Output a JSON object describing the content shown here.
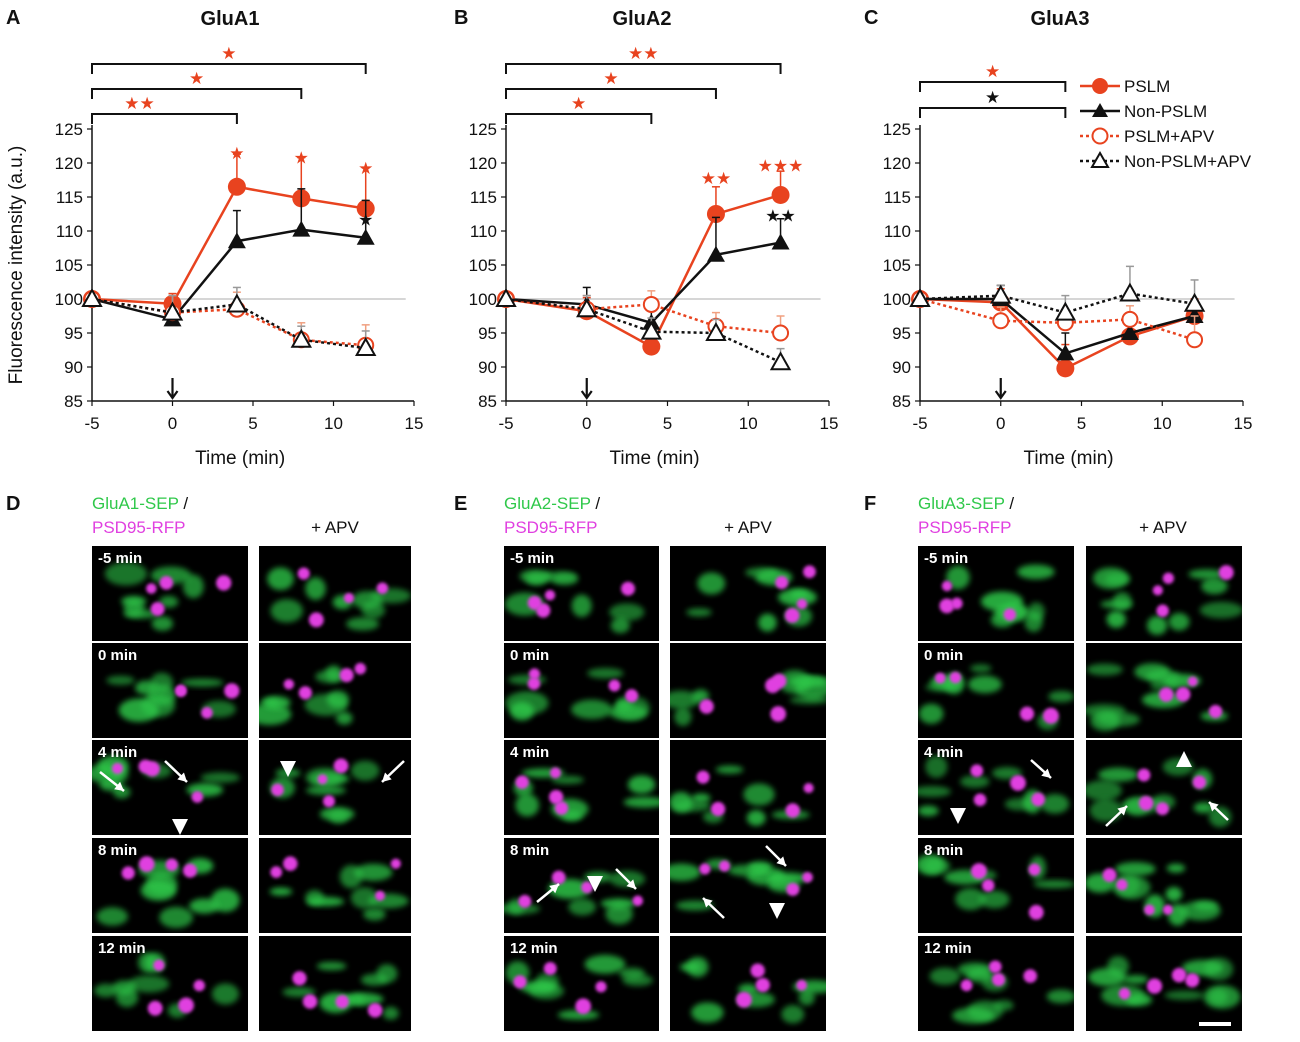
{
  "colors": {
    "pslm": "#e8431f",
    "nonpslm": "#111111",
    "pslm_apv": "#e8431f",
    "nonpslm_apv": "#111111",
    "green": "#2fc84a",
    "magenta": "#e040e0",
    "grid": "#c8c8c8"
  },
  "panels": {
    "A": "A",
    "B": "B",
    "C": "C",
    "D": "D",
    "E": "E",
    "F": "F"
  },
  "legend": [
    "PSLM",
    "Non-PSLM",
    "PSLM+APV",
    "Non-PSLM+APV"
  ],
  "axis": {
    "ylabel": "Fluorescence intensity (a.u.)",
    "xlabel": "Time (min)"
  },
  "chart_data": [
    {
      "type": "line",
      "title": "GluA1",
      "xlabel": "Time (min)",
      "ylabel": "Fluorescence intensity (a.u.)",
      "xlim": [
        -5,
        15
      ],
      "ylim": [
        85,
        125
      ],
      "xticks": [
        -5,
        0,
        5,
        10,
        15
      ],
      "yticks": [
        85,
        90,
        95,
        100,
        105,
        110,
        115,
        120,
        125
      ],
      "x": [
        -5,
        0,
        4,
        8,
        12
      ],
      "stim_arrow_x": 0,
      "series": [
        {
          "name": "PSLM",
          "values": [
            100,
            99.3,
            116.5,
            114.8,
            113.3
          ],
          "err": [
            0,
            1.5,
            4.8,
            6.0,
            6.0
          ],
          "marker": "circle",
          "filled": true,
          "dashed": false
        },
        {
          "name": "Non-PSLM",
          "values": [
            100,
            97,
            108.5,
            110.2,
            109
          ],
          "err": [
            0,
            2.0,
            4.5,
            6.0,
            5.5
          ],
          "marker": "triangle",
          "filled": true,
          "dashed": false
        },
        {
          "name": "PSLM+APV",
          "values": [
            100,
            98,
            98.5,
            94,
            93.2
          ],
          "err": [
            0,
            2.5,
            2.5,
            2.5,
            3.0
          ],
          "marker": "circle",
          "filled": false,
          "dashed": true
        },
        {
          "name": "Non-PSLM+APV",
          "values": [
            100,
            98,
            99.2,
            94,
            92.8
          ],
          "err": [
            0,
            2.5,
            2.5,
            2.0,
            2.5
          ],
          "marker": "triangle",
          "filled": false,
          "dashed": true
        }
      ],
      "brackets": [
        {
          "x1": -5,
          "x2": 4,
          "stars": "★★",
          "color": "#e8431f"
        },
        {
          "x1": -5,
          "x2": 8,
          "stars": "★",
          "color": "#e8431f"
        },
        {
          "x1": -5,
          "x2": 12,
          "stars": "★",
          "color": "#e8431f"
        }
      ],
      "point_stars": [
        {
          "x": 4,
          "y": 121.5,
          "stars": "★",
          "color": "#e8431f"
        },
        {
          "x": 8,
          "y": 120.8,
          "stars": "★",
          "color": "#e8431f"
        },
        {
          "x": 12,
          "y": 119.3,
          "stars": "★",
          "color": "#e8431f"
        },
        {
          "x": 12,
          "y": 111.7,
          "stars": "★",
          "color": "#111111"
        }
      ]
    },
    {
      "type": "line",
      "title": "GluA2",
      "xlabel": "Time (min)",
      "ylabel": "",
      "xlim": [
        -5,
        15
      ],
      "ylim": [
        85,
        125
      ],
      "xticks": [
        -5,
        0,
        5,
        10,
        15
      ],
      "yticks": [
        85,
        90,
        95,
        100,
        105,
        110,
        115,
        120,
        125
      ],
      "x": [
        -5,
        0,
        4,
        8,
        12
      ],
      "stim_arrow_x": 0,
      "series": [
        {
          "name": "PSLM",
          "values": [
            100,
            98.2,
            93,
            112.5,
            115.3
          ],
          "err": [
            0,
            2.0,
            3.5,
            4.0,
            3.5
          ],
          "marker": "circle",
          "filled": true,
          "dashed": false
        },
        {
          "name": "Non-PSLM",
          "values": [
            100,
            99.2,
            96.5,
            106.5,
            108.3
          ],
          "err": [
            0,
            2.5,
            3.0,
            5.5,
            3.5
          ],
          "marker": "triangle",
          "filled": true,
          "dashed": false
        },
        {
          "name": "PSLM+APV",
          "values": [
            100,
            98.5,
            99.2,
            96,
            95
          ],
          "err": [
            0,
            2.0,
            2.0,
            2.0,
            2.5
          ],
          "marker": "circle",
          "filled": false,
          "dashed": true
        },
        {
          "name": "Non-PSLM+APV",
          "values": [
            100,
            98.5,
            95.2,
            95,
            90.7
          ],
          "err": [
            0,
            2.0,
            2.0,
            2.0,
            2.0
          ],
          "marker": "triangle",
          "filled": false,
          "dashed": true
        }
      ],
      "brackets": [
        {
          "x1": -5,
          "x2": 4,
          "stars": "★",
          "color": "#e8431f"
        },
        {
          "x1": -5,
          "x2": 8,
          "stars": "★",
          "color": "#e8431f"
        },
        {
          "x1": -5,
          "x2": 12,
          "stars": "★★",
          "color": "#e8431f"
        }
      ],
      "point_stars": [
        {
          "x": 8,
          "y": 117.8,
          "stars": "★★",
          "color": "#e8431f"
        },
        {
          "x": 12,
          "y": 119.6,
          "stars": "★★★",
          "color": "#e8431f"
        },
        {
          "x": 12,
          "y": 112.3,
          "stars": "★★",
          "color": "#111111"
        }
      ]
    },
    {
      "type": "line",
      "title": "GluA3",
      "xlabel": "Time (min)",
      "ylabel": "",
      "xlim": [
        -5,
        15
      ],
      "ylim": [
        85,
        125
      ],
      "xticks": [
        -5,
        0,
        5,
        10,
        15
      ],
      "yticks": [
        85,
        90,
        95,
        100,
        105,
        110,
        115,
        120,
        125
      ],
      "x": [
        -5,
        0,
        4,
        8,
        12
      ],
      "stim_arrow_x": 0,
      "series": [
        {
          "name": "PSLM",
          "values": [
            100,
            99.5,
            89.8,
            94.5,
            97.5
          ],
          "err": [
            0,
            2.0,
            3.5,
            2.5,
            2.5
          ],
          "marker": "circle",
          "filled": true,
          "dashed": false
        },
        {
          "name": "Non-PSLM",
          "values": [
            100,
            100,
            92,
            95,
            97.5
          ],
          "err": [
            0,
            2.0,
            3.0,
            2.0,
            2.0
          ],
          "marker": "triangle",
          "filled": true,
          "dashed": false
        },
        {
          "name": "PSLM+APV",
          "values": [
            100,
            96.8,
            96.5,
            97,
            94
          ],
          "err": [
            0,
            2.0,
            2.0,
            2.0,
            3.5
          ],
          "marker": "circle",
          "filled": false,
          "dashed": true
        },
        {
          "name": "Non-PSLM+APV",
          "values": [
            100,
            100.5,
            98,
            100.8,
            99.3
          ],
          "err": [
            0,
            1.5,
            2.5,
            4.0,
            3.5
          ],
          "marker": "triangle",
          "filled": false,
          "dashed": true
        }
      ],
      "brackets": [
        {
          "x1": -5,
          "x2": 4,
          "stars": "★",
          "color": "#111111"
        },
        {
          "x1": -5,
          "x2": 4,
          "stars": "★",
          "color": "#e8431f"
        }
      ],
      "point_stars": []
    }
  ],
  "image_panels": [
    {
      "title_green": "GluA1-SEP",
      "title_sep": " /",
      "title_magenta": "PSD95-RFP",
      "apv_label": "+ APV",
      "times": [
        "-5 min",
        "0 min",
        "4 min",
        "8 min",
        "12 min"
      ]
    },
    {
      "title_green": "GluA2-SEP",
      "title_sep": " /",
      "title_magenta": "PSD95-RFP",
      "apv_label": "+ APV",
      "times": [
        "-5 min",
        "0 min",
        "4 min",
        "8 min",
        "12 min"
      ]
    },
    {
      "title_green": "GluA3-SEP",
      "title_sep": " /",
      "title_magenta": "PSD95-RFP",
      "apv_label": "+ APV",
      "times": [
        "-5 min",
        "0 min",
        "4 min",
        "8 min",
        "12 min"
      ]
    }
  ]
}
